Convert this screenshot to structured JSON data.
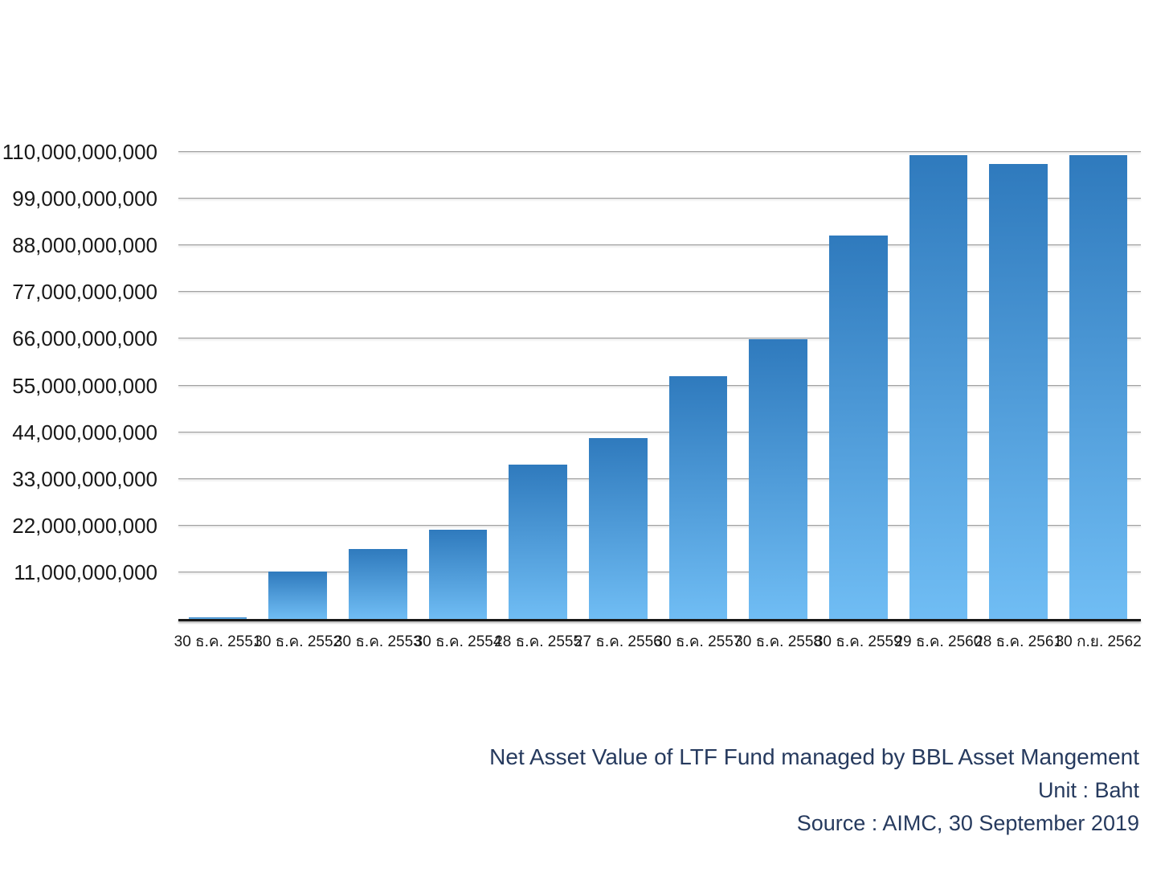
{
  "chart_data": {
    "type": "bar",
    "title": "Net Asset Value of LTF Fund managed by BBL Asset Mangement",
    "unit_label": "Unit : Baht",
    "source_label": "Source : AIMC, 30 September 2019",
    "categories": [
      "30 ธ.ค. 2551",
      "30 ธ.ค. 2552",
      "30 ธ.ค. 2553",
      "30 ธ.ค. 2554",
      "28 ธ.ค. 2555",
      "27 ธ.ค. 2556",
      "30 ธ.ค. 2557",
      "30 ธ.ค. 2558",
      "30 ธ.ค. 2559",
      "29 ธ.ค. 2560",
      "28 ธ.ค. 2561",
      "30 ก.ย. 2562"
    ],
    "values": [
      400000000,
      11100000000,
      16500000000,
      21000000000,
      36300000000,
      42600000000,
      57100000000,
      65800000000,
      90300000000,
      109300000000,
      107100000000,
      109300000000
    ],
    "ylim": [
      0,
      110000000000
    ],
    "y_tick_values": [
      110000000000,
      99000000000,
      88000000000,
      77000000000,
      66000000000,
      55000000000,
      44000000000,
      33000000000,
      22000000000,
      11000000000
    ],
    "y_tick_labels": [
      "110,000,000,000",
      "99,000,000,000",
      "88,000,000,000",
      "77,000,000,000",
      "66,000,000,000",
      "55,000,000,000",
      "44,000,000,000",
      "33,000,000,000",
      "22,000,000,000",
      "11,000,000,000"
    ],
    "grid": true,
    "legend_position": "none",
    "colors": {
      "bar_gradient_top": "#2f7abd",
      "bar_gradient_bottom": "#70bdf4",
      "grid_color": "#a2a2a2",
      "axis_color": "#1a1a1a",
      "tick_label_color": "#191919",
      "footer_text_color": "#263a5e"
    }
  }
}
